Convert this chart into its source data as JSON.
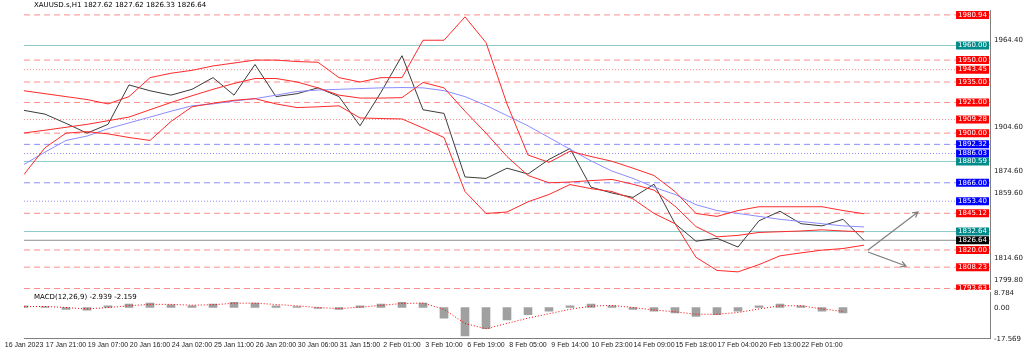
{
  "chart_data": [
    {
      "type": "line",
      "title": "XAUUSD.s,H1 1827.62 1827.62 1826.33 1826.64",
      "tick_labels": "y",
      "categories": [
        null,
        null,
        null,
        null,
        null,
        null,
        null,
        null,
        null,
        null,
        null,
        null,
        null,
        null,
        null,
        null,
        null,
        null,
        null,
        null,
        null,
        null,
        null,
        null,
        null,
        null,
        null,
        null,
        null,
        null,
        null,
        null,
        null,
        null,
        null,
        null,
        null,
        null,
        null,
        null,
        null,
        null,
        null,
        null,
        null,
        null,
        null
      ],
      "ylim": [
        1792.6,
        1984.3
      ],
      "yticks": [
        {
          "value": 1964.4,
          "label": "1964.40"
        },
        {
          "value": 1904.6,
          "label": "1904.60"
        },
        {
          "value": 1874.6,
          "label": "1874.60"
        },
        {
          "value": 1859.6,
          "label": "1859.60"
        },
        {
          "value": 1814.6,
          "label": "1814.60"
        },
        {
          "value": 1799.8,
          "label": "1799.80"
        }
      ],
      "series": [
        {
          "color": "#ff2a2a",
          "values": [
            1929,
            1927,
            1925,
            1923,
            1920,
            1925,
            1938,
            1941,
            1943,
            1946,
            1948,
            1950,
            1950,
            1949,
            1948.5,
            1938,
            1935,
            1938,
            1938,
            1963.6,
            1963.6,
            1979.6,
            1962,
            1920,
            1885,
            1880,
            1887.6,
            1884,
            1880.7,
            1876,
            1871,
            1860,
            1845,
            1843,
            1847,
            1849.6,
            1849.6,
            1849.6,
            1849.6,
            1847,
            1844.8,
            null,
            null,
            null,
            null,
            null,
            null
          ]
        },
        {
          "color": "#ff2a2a",
          "values": [
            1871.7,
            1890,
            1900,
            1901,
            1899.5,
            1897,
            1895,
            1908,
            1918,
            1920.5,
            1922.5,
            1923.6,
            1920,
            1917.5,
            1918,
            1918.7,
            1910.4,
            1910,
            1909.7,
            1903.5,
            1897,
            1860,
            1845,
            1846,
            1853,
            1858,
            1864.8,
            1862,
            1860,
            1855,
            1845,
            1838,
            1815,
            1806,
            1805,
            1810,
            1816,
            1818,
            1819.9,
            1821,
            1823.3,
            null,
            null,
            null,
            null,
            null,
            null
          ]
        },
        {
          "color": "#ff2a2a",
          "values": [
            1900.1,
            1902,
            1904,
            1906,
            1908.5,
            1911,
            1916,
            1921,
            1925.6,
            1930,
            1934,
            1937.4,
            1937.4,
            1935,
            1931,
            1926,
            1924,
            1924,
            1924.3,
            1934.7,
            1931,
            1915,
            1900,
            1884,
            1871,
            1866,
            1866.5,
            1867.5,
            1868.3,
            1865,
            1861,
            1850,
            1836,
            1829,
            1830,
            1832,
            1832.5,
            1833,
            1833.8,
            1833,
            1832.4,
            null,
            null,
            null,
            null,
            null,
            null
          ]
        },
        {
          "color": "#8c8cff",
          "values": [
            1878.6,
            1887,
            1895,
            1898,
            1903,
            1907,
            1911,
            1915,
            1918.7,
            1920,
            1922,
            1923.6,
            1926,
            1928.5,
            1929.5,
            1930,
            1930.5,
            1931,
            1931.2,
            1931,
            1929.1,
            1925,
            1919,
            1912,
            1905,
            1897,
            1889,
            1881,
            1874,
            1869,
            1863,
            1858,
            1851,
            1847,
            1845,
            1843,
            1841,
            1839.5,
            1838,
            1836.5,
            1835.8,
            null,
            null,
            null,
            null,
            null,
            null
          ]
        },
        {
          "color": "#3c3c3c",
          "values": [
            1915.6,
            1913,
            1906.7,
            1900,
            1906,
            1933,
            1929,
            1926,
            1930,
            1938,
            1926,
            1947,
            1925,
            1927,
            1931,
            1925,
            1905,
            1928,
            1953,
            1916,
            1913.5,
            1870,
            1869,
            1876,
            1872,
            1882,
            1889.5,
            1863,
            1859,
            1856,
            1865,
            1838,
            1826,
            1828,
            1822,
            1840,
            1846.5,
            1838,
            1836.5,
            1841,
            1826.6,
            null,
            null,
            null,
            null,
            null,
            null
          ]
        }
      ],
      "ref_lines": [
        {
          "axis": "y",
          "value": 1980.94,
          "label": "1980.94",
          "color": "#ff0000",
          "line_style": "dashed"
        },
        {
          "axis": "y",
          "value": 1960.0,
          "label": "1960.00",
          "color": "#008b8b",
          "line_style": "solid"
        },
        {
          "axis": "y",
          "value": 1950.0,
          "label": "1950.00",
          "color": "#ff0000",
          "line_style": "dashed"
        },
        {
          "axis": "y",
          "value": 1943.45,
          "label": "1943.45",
          "color": "#ff0000",
          "line_style": "dotted"
        },
        {
          "axis": "y",
          "value": 1935.0,
          "label": "1935.00",
          "color": "#ff0000",
          "line_style": "dashed"
        },
        {
          "axis": "y",
          "value": 1921.0,
          "label": "1921.00",
          "color": "#ff0000",
          "line_style": "dashed"
        },
        {
          "axis": "y",
          "value": 1909.28,
          "label": "1909.28",
          "color": "#ff0000",
          "line_style": "dotted"
        },
        {
          "axis": "y",
          "value": 1900.0,
          "label": "1900.00",
          "color": "#ff0000",
          "line_style": "dashed"
        },
        {
          "axis": "y",
          "value": 1892.32,
          "label": "1892.32",
          "color": "#0000ff",
          "line_style": "dashed"
        },
        {
          "axis": "y",
          "value": 1886.03,
          "label": "1886.03",
          "color": "#0000ff",
          "line_style": "dotted"
        },
        {
          "axis": "y",
          "value": 1880.59,
          "label": "1880.59",
          "color": "#008b8b",
          "line_style": "solid"
        },
        {
          "axis": "y",
          "value": 1866.0,
          "label": "1866.00",
          "color": "#0000ff",
          "line_style": "dashed"
        },
        {
          "axis": "y",
          "value": 1853.4,
          "label": "1853.40",
          "color": "#0000ff",
          "line_style": "dotted"
        },
        {
          "axis": "y",
          "value": 1845.12,
          "label": "1845.12",
          "color": "#ff0000",
          "line_style": "dashed"
        },
        {
          "axis": "y",
          "value": 1832.64,
          "label": "1832.64",
          "color": "#008b8b",
          "line_style": "solid"
        },
        {
          "axis": "y",
          "value": 1826.64,
          "label": "1826.64",
          "color": "#000000",
          "line_style": "solid"
        },
        {
          "axis": "y",
          "value": 1820.0,
          "label": "1820.00",
          "color": "#ff0000",
          "line_style": "dashed"
        },
        {
          "axis": "y",
          "value": 1808.23,
          "label": "1808.23",
          "color": "#ff0000",
          "line_style": "dashed"
        },
        {
          "axis": "y",
          "value": 1793.63,
          "label": "1793.63",
          "color": "#ff0000",
          "line_style": "dashed"
        }
      ]
    },
    {
      "type": "bar",
      "title": "MACD(12,26,9) -2.939 -2.159",
      "categories": [
        "16 Jan 2023",
        null,
        "17 Jan 21:00",
        null,
        "19 Jan 07:00",
        null,
        "20 Jan 16:00",
        null,
        "24 Jan 02:00",
        null,
        "25 Jan 11:00",
        null,
        "26 Jan 20:00",
        null,
        "30 Jan 06:00",
        null,
        "31 Jan 15:00",
        null,
        "2 Feb 01:00",
        null,
        "3 Feb 10:00",
        null,
        "6 Feb 19:00",
        null,
        "8 Feb 05:00",
        null,
        "9 Feb 14:00",
        null,
        "10 Feb 23:00",
        null,
        "14 Feb 09:00",
        null,
        "15 Feb 18:00",
        null,
        "17 Feb 04:00",
        null,
        "20 Feb 13:00",
        null,
        "22 Feb 01:00",
        null,
        null,
        null,
        null,
        null,
        null,
        null,
        null
      ],
      "ylim": [
        -17.569,
        8.784
      ],
      "yticks": [
        {
          "value": 8.784,
          "label": "8.784"
        },
        {
          "value": 0,
          "label": "0.00"
        },
        {
          "value": -17.569,
          "label": "-17.569"
        }
      ],
      "series": [
        {
          "color": "#a0a0a0",
          "values": [
            1,
            0.5,
            -1,
            -1.5,
            1,
            2,
            2.5,
            1.5,
            1,
            2,
            3,
            2.5,
            1,
            0.5,
            -0.5,
            -1,
            1,
            2,
            3,
            2.5,
            -6,
            -16,
            -12,
            -7,
            -4,
            -2,
            1,
            2,
            1,
            -1,
            -2,
            -3,
            -5,
            -4,
            -2,
            1,
            2,
            1,
            -2,
            -3,
            null,
            null,
            null,
            null,
            null,
            null,
            null
          ]
        },
        {
          "type": "line",
          "color": "#ff0000",
          "line_style": "dotted",
          "values": [
            0.5,
            0.6,
            0,
            -0.8,
            0,
            1,
            1.8,
            1.8,
            1.3,
            1.6,
            2.4,
            2.5,
            1.7,
            1,
            0,
            -0.6,
            0.2,
            1.2,
            2.3,
            2.5,
            -1,
            -9,
            -12,
            -9,
            -6,
            -3.5,
            -1,
            0.8,
            1.2,
            0,
            -1.4,
            -2.4,
            -3.8,
            -3.8,
            -2.8,
            -0.8,
            1,
            1,
            -0.8,
            -2.2,
            null,
            null,
            null,
            null,
            null,
            null,
            null
          ]
        }
      ]
    }
  ]
}
